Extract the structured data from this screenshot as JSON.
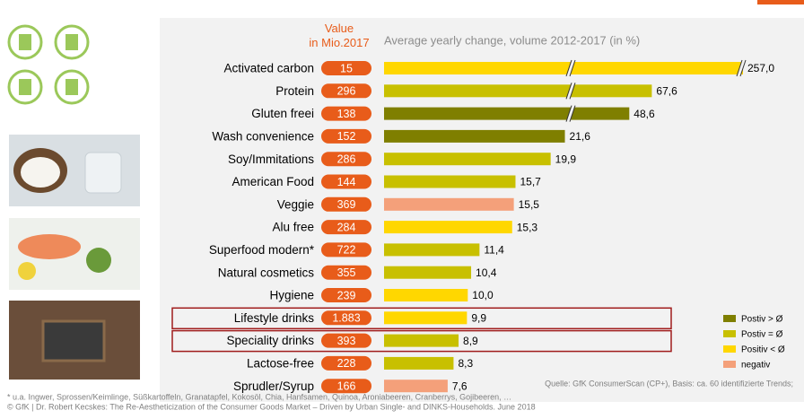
{
  "chart_data": {
    "type": "bar",
    "value_header": "Value\nin Mio.2017",
    "change_header": "Average yearly change, volume 2012-2017 (in %)",
    "categories": [
      "Activated carbon",
      "Protein",
      "Gluten freei",
      "Wash convenience",
      "Soy/Immitations",
      "American Food",
      "Veggie",
      "Alu free",
      "Superfood modern*",
      "Natural cosmetics",
      "Hygiene",
      "Lifestyle drinks",
      "Speciality drinks",
      "Lactose-free",
      "Sprudler/Syrup"
    ],
    "market_values": [
      15,
      296,
      138,
      152,
      286,
      144,
      369,
      284,
      722,
      355,
      239,
      1883,
      393,
      228,
      166
    ],
    "market_value_labels": [
      "15",
      "296",
      "138",
      "152",
      "286",
      "144",
      "369",
      "284",
      "722",
      "355",
      "239",
      "1.883",
      "393",
      "228",
      "166"
    ],
    "values": [
      257.0,
      67.6,
      48.6,
      21.6,
      19.9,
      15.7,
      15.5,
      15.3,
      11.4,
      10.4,
      10.0,
      9.9,
      8.9,
      8.3,
      7.6
    ],
    "value_labels": [
      "257,0",
      "67,6",
      "48,6",
      "21,6",
      "19,9",
      "15,7",
      "15,5",
      "15,3",
      "11,4",
      "10,4",
      "10,0",
      "9,9",
      "8,9",
      "8,3",
      "7,6"
    ],
    "colors": [
      "#ffd700",
      "#c8c000",
      "#7f7f00",
      "#7f7f00",
      "#c8c000",
      "#c8c000",
      "#f4a07a",
      "#ffd700",
      "#c8c000",
      "#c8c000",
      "#ffd700",
      "#ffd700",
      "#c8c000",
      "#c8c000",
      "#f4a07a"
    ],
    "pill_color": "#e85c1a",
    "highlighted": [
      11,
      12
    ],
    "legend": [
      {
        "name": "Postiv > Ø",
        "color": "#7f7f00"
      },
      {
        "name": "Postiv = Ø",
        "color": "#c8c000"
      },
      {
        "name": "Positiv < Ø",
        "color": "#ffd700"
      },
      {
        "name": "negativ",
        "color": "#f4a07a"
      }
    ],
    "source": "Quelle: GfK ConsumerScan (CP+), Basis: ca. 60 identifizierte Trends;",
    "footnotes": [
      "* u.a. Ingwer, Sprossen/Keimlinge, Süßkartoffeln, Granatapfel, Kokosöl, Chia, Hanfsamen, Quinoa, Aroniabeeren, Cranberrys, Gojibeeren, …",
      "© GfK | Dr. Robert Kecskes: The Re-Aestheticization of the Consumer Goods Market – Driven by Urban Single- and DINKS-Households. June 2018"
    ]
  }
}
